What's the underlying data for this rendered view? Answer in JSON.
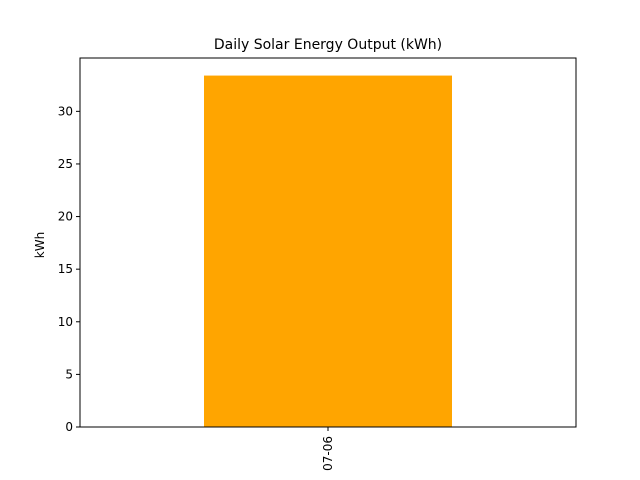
{
  "chart_data": {
    "type": "bar",
    "title": "Daily Solar Energy Output (kWh)",
    "xlabel": "",
    "ylabel": "kWh",
    "categories": [
      "07-06"
    ],
    "values": [
      33.4
    ],
    "ylim": [
      0,
      35.07
    ],
    "yticks": [
      0,
      5,
      10,
      15,
      20,
      25,
      30
    ],
    "grid": false,
    "legend": "none",
    "bar_color": "#FFA500"
  }
}
